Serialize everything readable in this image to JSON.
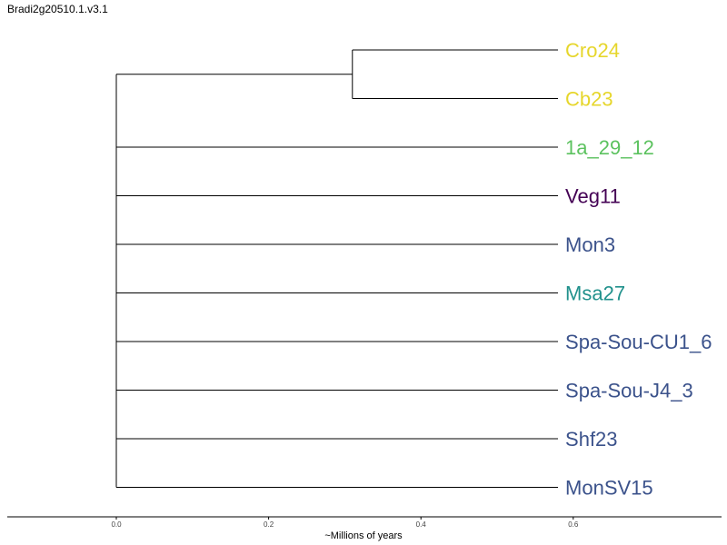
{
  "title": "Bradi2g20510.1.v3.1",
  "tree": {
    "leaves": [
      {
        "name": "Cro24",
        "color": "#e6d62c",
        "branch_end": 0.58
      },
      {
        "name": "Cb23",
        "color": "#e6d62c",
        "branch_end": 0.58
      },
      {
        "name": "1a_29_12",
        "color": "#5cc25f",
        "branch_end": 0.58
      },
      {
        "name": "Veg11",
        "color": "#440154",
        "branch_end": 0.58
      },
      {
        "name": "Mon3",
        "color": "#3b528b",
        "branch_end": 0.58
      },
      {
        "name": "Msa27",
        "color": "#21918c",
        "branch_end": 0.58
      },
      {
        "name": "Spa-Sou-CU1_6",
        "color": "#3b528b",
        "branch_end": 0.58
      },
      {
        "name": "Spa-Sou-J4_3",
        "color": "#3b528b",
        "branch_end": 0.58
      },
      {
        "name": "Shf23",
        "color": "#3b528b",
        "branch_end": 0.58
      },
      {
        "name": "MonSV15",
        "color": "#3b528b",
        "branch_end": 0.58
      }
    ],
    "root_node": 0.0,
    "inner_node": {
      "x": 0.31,
      "children": [
        0,
        1
      ]
    }
  },
  "axis": {
    "label": "~Millions of years",
    "ticks": [
      "0.0",
      "0.2",
      "0.4",
      "0.6"
    ],
    "tick_values": [
      0.0,
      0.2,
      0.4,
      0.6
    ],
    "range": [
      -0.142,
      0.795
    ]
  }
}
